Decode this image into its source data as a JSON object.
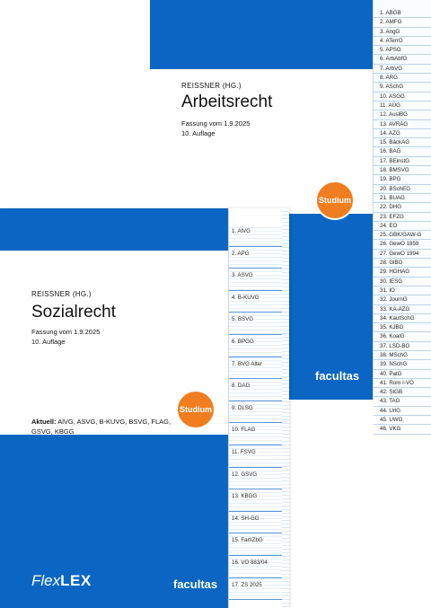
{
  "arbeitsrecht": {
    "editor": "REISSNER (HG.)",
    "title": "Arbeitsrecht",
    "edition": "Fassung vom 1.9.2025",
    "edition_number": "10. Auflage",
    "badge": "Studium",
    "publisher": "facultas",
    "tabs": [
      "1. ABGB",
      "2. AMFG",
      "3. AngG",
      "4. ATerrG",
      "5. APSG",
      "6. ArbAbfG",
      "7. ArbVG",
      "8. ARG",
      "9. ASchG",
      "10. ASGG",
      "11. AÜG",
      "12. AuslBG",
      "13. AVRAG",
      "14. AZG",
      "15. BäckAG",
      "16. BAG",
      "17. BEinstG",
      "18. BMSVG",
      "19. BPG",
      "20. BSchEG",
      "21. BUAG",
      "22. DHG",
      "23. EFZG",
      "24. EO",
      "25. GBK/GAW-G",
      "26. GewO 1859",
      "27. GewO 1994",
      "28. GlBG",
      "29. HGHAG",
      "30. IESG",
      "31. IO",
      "32. JournG",
      "33. KA-AZG",
      "34. KautSchG",
      "35. KJBG",
      "36. KoalG",
      "37. LSD-BG",
      "38. MSchG",
      "39. NSchG",
      "40. PatG",
      "41. Rom I-VO",
      "42. StGB",
      "43. TAG",
      "44. UrlG",
      "45. UWG",
      "46. VKG"
    ]
  },
  "sozialrecht": {
    "editor": "REISSNER (HG.)",
    "title": "Sozialrecht",
    "edition": "Fassung vom 1.9.2025",
    "edition_number": "10. Auflage",
    "badge": "Studium",
    "current_label": "Aktuell:",
    "current_text": "AlVG, ASVG, B-KUVG, BSVG, FLAG, GSVG, KBGG",
    "brand_flex": "Flex",
    "brand_lex": "LEX",
    "publisher": "facultas",
    "tabs": [
      "1. AlVG",
      "2. APG",
      "3. ASVG",
      "4. B-KUVG",
      "5. BSVG",
      "6. BPGG",
      "7. BVG Alter",
      "8. DAG",
      "9. DLSG",
      "10. FLAG",
      "11. FSVG",
      "12. GSVG",
      "13. KBGG",
      "14. SH-GG",
      "15. FamZbG",
      "16. VO 883/04",
      "17. ZS 2025"
    ]
  },
  "colors": {
    "blue": "#0a66c2",
    "badge_orange": "#f07d1f"
  }
}
